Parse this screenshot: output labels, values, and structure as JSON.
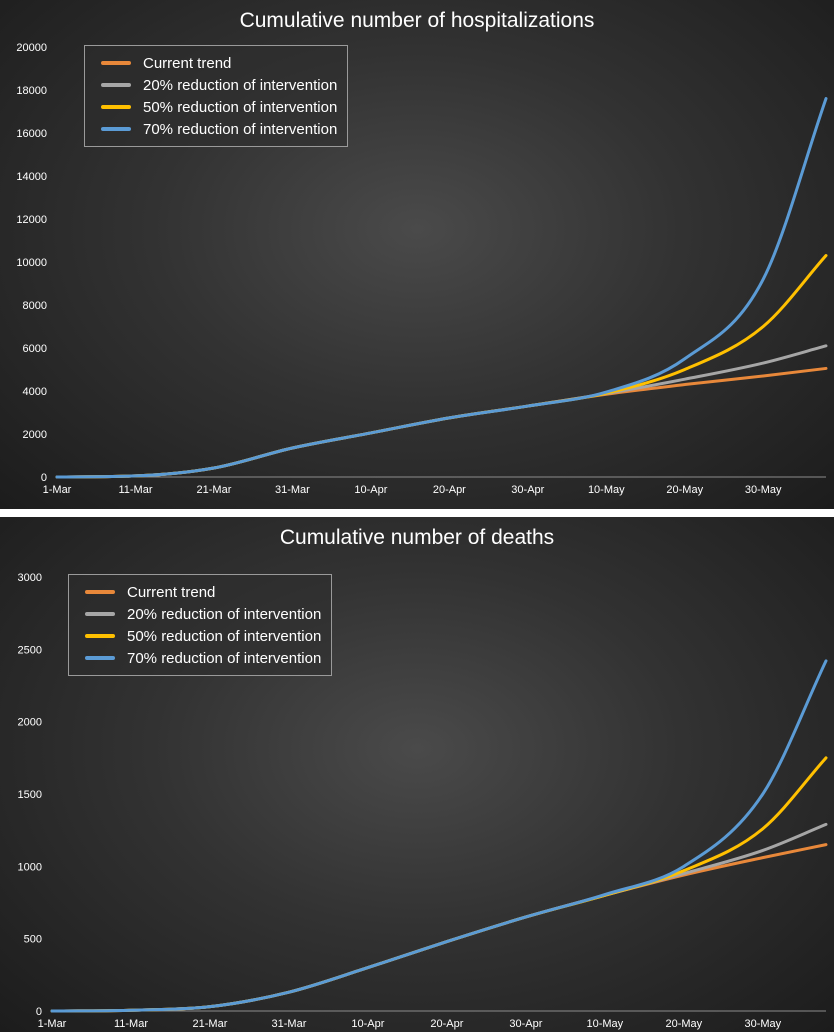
{
  "chart_data": [
    {
      "type": "line",
      "title": "Cumulative number of hospitalizations",
      "xlabel": "",
      "ylabel": "",
      "x_ticks": [
        "1-Mar",
        "11-Mar",
        "21-Mar",
        "31-Mar",
        "10-Apr",
        "20-Apr",
        "30-Apr",
        "10-May",
        "20-May",
        "30-May"
      ],
      "y_ticks": [
        "0",
        "2000",
        "4000",
        "6000",
        "8000",
        "10000",
        "12000",
        "14000",
        "16000",
        "18000",
        "20000"
      ],
      "ylim": [
        0,
        20000
      ],
      "x_range": [
        "1-Mar",
        "7-Jun"
      ],
      "grid": false,
      "legend_position": "top-left",
      "x": [
        "1-Mar",
        "11-Mar",
        "21-Mar",
        "31-Mar",
        "10-Apr",
        "20-Apr",
        "30-Apr",
        "10-May",
        "20-May",
        "30-May",
        "7-Jun"
      ],
      "series": [
        {
          "name": "Current trend",
          "color": "#e8883a",
          "values": [
            0,
            50,
            420,
            1350,
            2050,
            2750,
            3300,
            3850,
            4300,
            4700,
            5050
          ]
        },
        {
          "name": "20% reduction of intervention",
          "color": "#a6a6a6",
          "values": [
            0,
            50,
            420,
            1350,
            2050,
            2750,
            3300,
            3880,
            4550,
            5300,
            6100
          ]
        },
        {
          "name": "50% reduction of intervention",
          "color": "#ffc000",
          "values": [
            0,
            50,
            420,
            1350,
            2050,
            2750,
            3300,
            3900,
            5000,
            7000,
            10300
          ]
        },
        {
          "name": "70% reduction of intervention",
          "color": "#5b9bd5",
          "values": [
            0,
            50,
            420,
            1350,
            2050,
            2750,
            3300,
            3950,
            5500,
            9200,
            17600
          ]
        }
      ]
    },
    {
      "type": "line",
      "title": "Cumulative number of deaths",
      "xlabel": "",
      "ylabel": "",
      "x_ticks": [
        "1-Mar",
        "11-Mar",
        "21-Mar",
        "31-Mar",
        "10-Apr",
        "20-Apr",
        "30-Apr",
        "10-May",
        "20-May",
        "30-May"
      ],
      "y_ticks": [
        "0",
        "500",
        "1000",
        "1500",
        "2000",
        "2500",
        "3000"
      ],
      "ylim": [
        0,
        3000
      ],
      "x_range": [
        "1-Mar",
        "7-Jun"
      ],
      "grid": false,
      "legend_position": "top-left",
      "x": [
        "1-Mar",
        "11-Mar",
        "21-Mar",
        "31-Mar",
        "10-Apr",
        "20-Apr",
        "30-Apr",
        "10-May",
        "20-May",
        "30-May",
        "7-Jun"
      ],
      "series": [
        {
          "name": "Current trend",
          "color": "#e8883a",
          "values": [
            0,
            5,
            30,
            130,
            300,
            480,
            650,
            800,
            940,
            1060,
            1150
          ]
        },
        {
          "name": "20% reduction of intervention",
          "color": "#a6a6a6",
          "values": [
            0,
            5,
            30,
            130,
            300,
            480,
            650,
            800,
            950,
            1110,
            1290
          ]
        },
        {
          "name": "50% reduction of intervention",
          "color": "#ffc000",
          "values": [
            0,
            5,
            30,
            130,
            300,
            480,
            650,
            800,
            970,
            1260,
            1750
          ]
        },
        {
          "name": "70% reduction of intervention",
          "color": "#5b9bd5",
          "values": [
            0,
            5,
            30,
            130,
            300,
            480,
            650,
            805,
            1000,
            1500,
            2420
          ]
        }
      ]
    }
  ]
}
